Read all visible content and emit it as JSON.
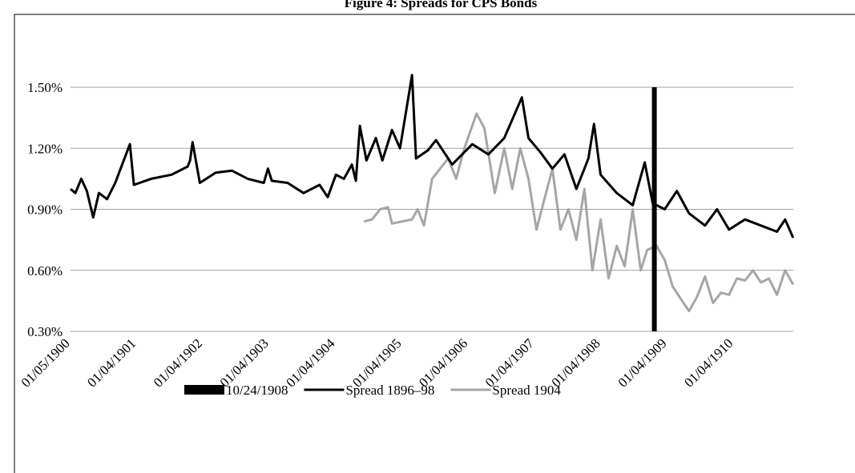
{
  "chart_data": {
    "type": "line",
    "title": "Figure 4: Spreads for CPS Bonds",
    "xlim": [
      "1900-01-05",
      "1910-11-28"
    ],
    "xticks": [
      {
        "value": "1900-01-05",
        "label": "01/05/1900"
      },
      {
        "value": "1901-01-04",
        "label": "01/04/1901"
      },
      {
        "value": "1902-01-04",
        "label": "01/04/1902"
      },
      {
        "value": "1903-01-04",
        "label": "01/04/1903"
      },
      {
        "value": "1904-01-04",
        "label": "01/04/1904"
      },
      {
        "value": "1905-01-04",
        "label": "01/04/1905"
      },
      {
        "value": "1906-01-04",
        "label": "01/04/1906"
      },
      {
        "value": "1907-01-04",
        "label": "01/04/1907"
      },
      {
        "value": "1908-01-04",
        "label": "01/04/1908"
      },
      {
        "value": "1909-01-04",
        "label": "01/04/1909"
      },
      {
        "value": "1910-01-04",
        "label": "01/04/1910"
      }
    ],
    "ylim": [
      0.3,
      1.5
    ],
    "yticks": [
      {
        "value": 0.3,
        "label": "0.30%"
      },
      {
        "value": 0.6,
        "label": "0.60%"
      },
      {
        "value": 0.9,
        "label": "0.90%"
      },
      {
        "value": 1.2,
        "label": "1.20%"
      },
      {
        "value": 1.5,
        "label": "1.50%"
      }
    ],
    "grid": true,
    "legend": "bottom",
    "events": [
      {
        "name": "10/24/1908",
        "x": "1908-10-24",
        "color": "#000000"
      }
    ],
    "series": [
      {
        "name": "Spread 1896–98",
        "color": "#000000",
        "x": [
          "1900-01-05",
          "1900-02-01",
          "1900-03-05",
          "1900-04-05",
          "1900-05-10",
          "1900-06-10",
          "1900-07-25",
          "1900-09-08",
          "1900-11-28",
          "1900-12-20",
          "1901-03-25",
          "1901-07-15",
          "1901-10-12",
          "1901-10-25",
          "1901-11-08",
          "1901-12-18",
          "1902-03-15",
          "1902-06-12",
          "1902-09-08",
          "1902-12-05",
          "1902-12-28",
          "1903-01-18",
          "1903-04-15",
          "1903-07-12",
          "1903-10-08",
          "1903-11-22",
          "1904-01-06",
          "1904-02-19",
          "1904-04-03",
          "1904-04-25",
          "1904-05-17",
          "1904-06-22",
          "1904-08-13",
          "1904-09-18",
          "1904-11-10",
          "1904-12-24",
          "1905-02-28",
          "1905-03-22",
          "1905-05-27",
          "1905-07-10",
          "1905-10-07",
          "1906-01-26",
          "1906-04-24",
          "1906-07-21",
          "1906-10-26",
          "1906-12-01",
          "1907-02-05",
          "1907-04-12",
          "1907-06-17",
          "1907-08-22",
          "1907-10-27",
          "1907-11-27",
          "1908-01-02",
          "1908-03-31",
          "1908-06-27",
          "1908-09-01",
          "1908-10-15",
          "1908-12-20",
          "1909-02-25",
          "1909-05-03",
          "1909-07-30",
          "1909-10-04",
          "1909-12-09",
          "1910-03-07",
          "1910-06-03",
          "1910-08-30",
          "1910-10-14",
          "1910-11-27"
        ],
        "values": [
          1.0,
          0.98,
          1.05,
          0.99,
          0.86,
          0.98,
          0.95,
          1.03,
          1.22,
          1.02,
          1.05,
          1.07,
          1.11,
          1.14,
          1.23,
          1.03,
          1.08,
          1.09,
          1.05,
          1.03,
          1.1,
          1.04,
          1.03,
          0.98,
          1.02,
          0.96,
          1.07,
          1.05,
          1.12,
          1.04,
          1.31,
          1.14,
          1.25,
          1.14,
          1.29,
          1.2,
          1.56,
          1.15,
          1.19,
          1.24,
          1.12,
          1.22,
          1.17,
          1.25,
          1.45,
          1.25,
          1.18,
          1.1,
          1.17,
          1.0,
          1.15,
          1.32,
          1.07,
          0.98,
          0.92,
          1.13,
          0.93,
          0.9,
          0.99,
          0.88,
          0.82,
          0.9,
          0.8,
          0.85,
          0.82,
          0.79,
          0.85,
          0.76
        ]
      },
      {
        "name": "Spread 1904",
        "color": "#a6a6a6",
        "x": [
          "1904-06-09",
          "1904-07-23",
          "1904-09-05",
          "1904-10-19",
          "1904-11-10",
          "1905-02-28",
          "1905-03-31",
          "1905-05-05",
          "1905-06-19",
          "1905-08-02",
          "1905-09-15",
          "1905-10-29",
          "1905-12-13",
          "1906-02-18",
          "1906-04-02",
          "1906-05-30",
          "1906-07-21",
          "1906-09-03",
          "1906-10-17",
          "1906-12-01",
          "1907-01-14",
          "1907-02-27",
          "1907-04-12",
          "1907-05-26",
          "1907-07-09",
          "1907-08-22",
          "1907-10-05",
          "1907-11-18",
          "1908-01-02",
          "1908-02-15",
          "1908-03-31",
          "1908-05-14",
          "1908-06-27",
          "1908-08-10",
          "1908-09-15",
          "1908-11-06",
          "1908-12-20",
          "1909-02-02",
          "1909-03-18",
          "1909-05-03",
          "1909-06-16",
          "1909-07-30",
          "1909-09-12",
          "1909-10-26",
          "1909-12-09",
          "1910-01-22",
          "1910-03-07",
          "1910-04-20",
          "1910-06-03",
          "1910-07-17",
          "1910-08-30",
          "1910-10-14",
          "1910-11-27"
        ],
        "values": [
          0.84,
          0.85,
          0.9,
          0.91,
          0.83,
          0.85,
          0.9,
          0.82,
          1.05,
          1.1,
          1.15,
          1.05,
          1.2,
          1.37,
          1.3,
          0.98,
          1.2,
          1.0,
          1.2,
          1.05,
          0.8,
          0.95,
          1.1,
          0.8,
          0.9,
          0.75,
          1.0,
          0.6,
          0.85,
          0.56,
          0.72,
          0.62,
          0.9,
          0.6,
          0.7,
          0.72,
          0.65,
          0.52,
          0.46,
          0.4,
          0.47,
          0.57,
          0.44,
          0.49,
          0.48,
          0.56,
          0.55,
          0.6,
          0.54,
          0.56,
          0.48,
          0.6,
          0.53
        ]
      }
    ]
  }
}
